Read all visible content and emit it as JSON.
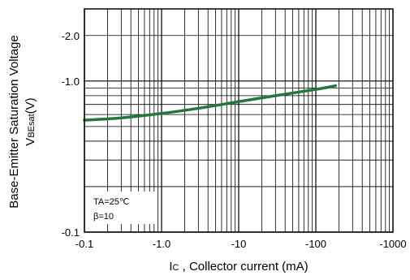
{
  "chart_data": {
    "type": "line",
    "xscale": "log",
    "yscale": "log",
    "xlim": [
      -0.1,
      -1000
    ],
    "ylim": [
      -0.1,
      -3.0
    ],
    "x_ticks": [
      "-0.1",
      "-1.0",
      "-10",
      "-100",
      "-1000"
    ],
    "y_ticks": [
      "-2.0",
      "-1.0",
      "-0.1"
    ],
    "xlabel_main": "I",
    "xlabel_sub": "C",
    "xlabel_rest": " , Collector current  (mA)",
    "ylabel_line1": "Base-Emitter Saturation Voltage",
    "ylabel_main": "V",
    "ylabel_sub": "BEsat",
    "ylabel_rest": "(V)",
    "annotations": [
      "TA=25℃",
      "β=10"
    ],
    "grid": true,
    "series": [
      {
        "color": "#1f7a3a",
        "points": [
          {
            "x": -0.1,
            "y": -0.55
          },
          {
            "x": -0.3,
            "y": -0.57
          },
          {
            "x": -1.0,
            "y": -0.61
          },
          {
            "x": -3.0,
            "y": -0.66
          },
          {
            "x": -10,
            "y": -0.73
          },
          {
            "x": -30,
            "y": -0.8
          },
          {
            "x": -100,
            "y": -0.88
          },
          {
            "x": -180,
            "y": -0.93
          }
        ]
      }
    ]
  }
}
